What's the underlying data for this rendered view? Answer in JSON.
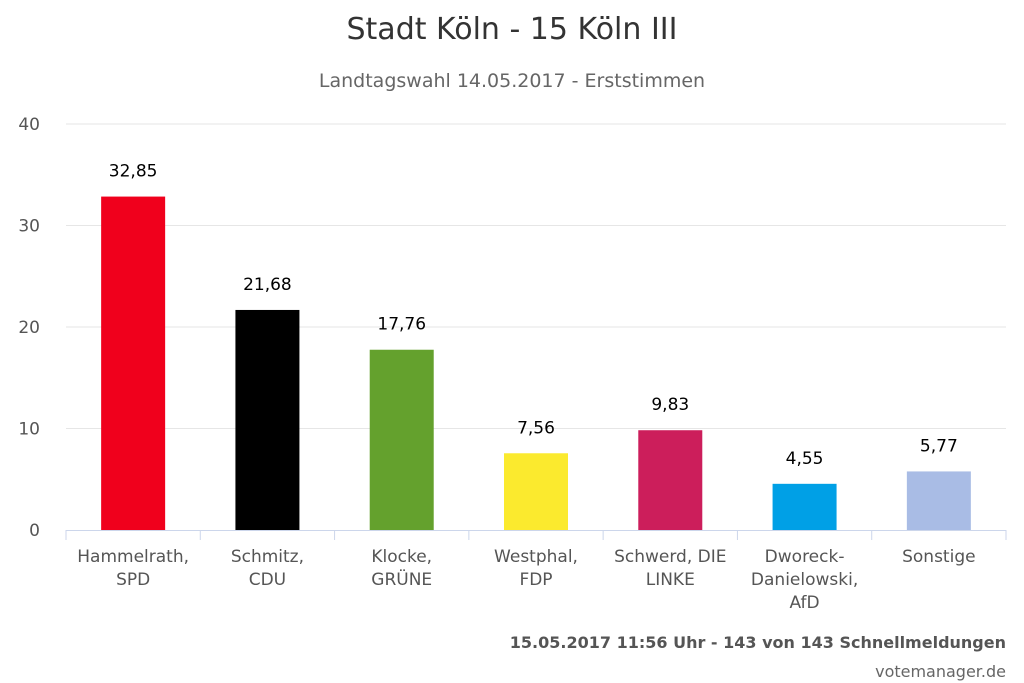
{
  "chart_data": {
    "type": "bar",
    "title": "Stadt Köln - 15 Köln III",
    "subtitle": "Landtagswahl 14.05.2017 - Erststimmen",
    "categories": [
      [
        "Hammelrath,",
        "SPD"
      ],
      [
        "Schmitz,",
        "CDU"
      ],
      [
        "Klocke,",
        "GRÜNE"
      ],
      [
        "Westphal,",
        "FDP"
      ],
      [
        "Schwerd, DIE",
        "LINKE"
      ],
      [
        "Dworeck-",
        "Danielowski,",
        "AfD"
      ],
      [
        "Sonstige"
      ]
    ],
    "values": [
      32.85,
      21.68,
      17.76,
      7.56,
      9.83,
      4.55,
      5.77
    ],
    "data_labels": [
      "32,85",
      "21,68",
      "17,76",
      "7,56",
      "9,83",
      "4,55",
      "5,77"
    ],
    "colors": [
      "#f0001c",
      "#000000",
      "#64a12d",
      "#fbea2e",
      "#cc1e5b",
      "#00a0e6",
      "#a9bce5"
    ],
    "ylim": [
      0,
      40
    ],
    "yticks": [
      0,
      10,
      20,
      30,
      40
    ],
    "grid": true,
    "legend": "none"
  },
  "footer": {
    "status": "15.05.2017 11:56 Uhr - 143 von 143 Schnellmeldungen",
    "credit": "votemanager.de"
  }
}
